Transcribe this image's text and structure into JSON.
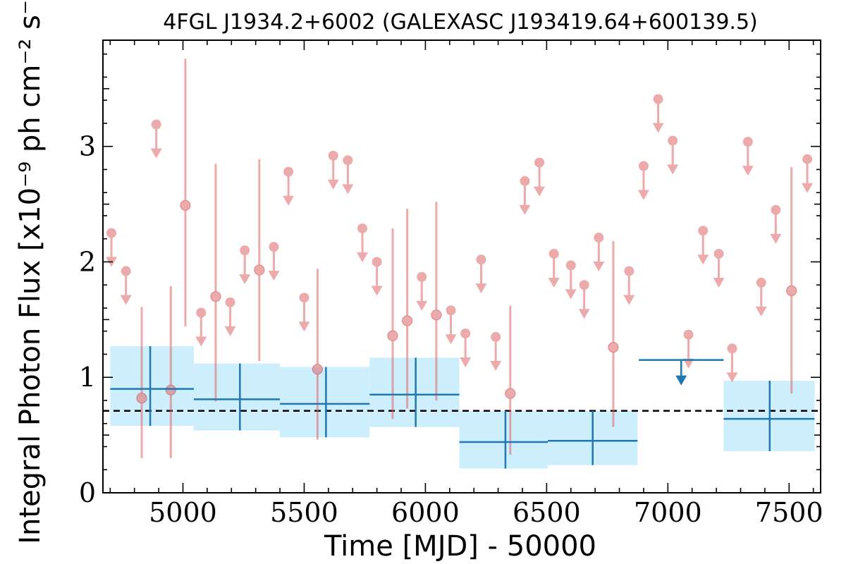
{
  "chart_data": {
    "type": "scatter",
    "title": "4FGL J1934.2+6002 (GALEXASC J193419.64+600139.5)",
    "xlabel": "Time [MJD] - 50000",
    "ylabel": "Integral Photon Flux [x10⁻⁹ ph cm⁻² s⁻¹]",
    "xlim": [
      4670,
      7630
    ],
    "ylim": [
      0,
      3.92
    ],
    "x_ticks": [
      5000,
      5500,
      6000,
      6500,
      7000,
      7500
    ],
    "y_ticks": [
      0,
      1,
      2,
      3
    ],
    "x_tick_labels": [
      "5000",
      "5500",
      "6000",
      "6500",
      "7000",
      "7500"
    ],
    "y_tick_labels": [
      "0",
      "1",
      "2",
      "3"
    ],
    "grid": false,
    "reference_line": {
      "y": 0.71,
      "style": "dashed",
      "color": "#000000"
    },
    "colors": {
      "fine_bins": "#e06666",
      "coarse_bins": "#1f77b4",
      "coarse_band": "#cdeefc"
    },
    "series": [
      {
        "style": "fine-bin-upper-limits",
        "points": [
          {
            "x": 4705,
            "y": 2.25
          },
          {
            "x": 4765,
            "y": 1.92
          },
          {
            "x": 4890,
            "y": 3.19
          },
          {
            "x": 5075,
            "y": 1.56
          },
          {
            "x": 5195,
            "y": 1.65
          },
          {
            "x": 5255,
            "y": 2.1
          },
          {
            "x": 5375,
            "y": 2.13
          },
          {
            "x": 5435,
            "y": 2.78
          },
          {
            "x": 5500,
            "y": 1.69
          },
          {
            "x": 5620,
            "y": 2.92
          },
          {
            "x": 5680,
            "y": 2.88
          },
          {
            "x": 5740,
            "y": 2.29
          },
          {
            "x": 5800,
            "y": 2.0
          },
          {
            "x": 5985,
            "y": 1.87
          },
          {
            "x": 6105,
            "y": 1.58
          },
          {
            "x": 6165,
            "y": 1.38
          },
          {
            "x": 6230,
            "y": 2.02
          },
          {
            "x": 6290,
            "y": 1.35
          },
          {
            "x": 6410,
            "y": 2.7
          },
          {
            "x": 6470,
            "y": 2.86
          },
          {
            "x": 6530,
            "y": 2.07
          },
          {
            "x": 6600,
            "y": 1.97
          },
          {
            "x": 6655,
            "y": 1.8
          },
          {
            "x": 6715,
            "y": 2.21
          },
          {
            "x": 6840,
            "y": 1.92
          },
          {
            "x": 6900,
            "y": 2.83
          },
          {
            "x": 6960,
            "y": 3.41
          },
          {
            "x": 7020,
            "y": 3.05
          },
          {
            "x": 7085,
            "y": 1.37
          },
          {
            "x": 7145,
            "y": 2.27
          },
          {
            "x": 7210,
            "y": 2.07
          },
          {
            "x": 7265,
            "y": 1.25
          },
          {
            "x": 7330,
            "y": 3.04
          },
          {
            "x": 7385,
            "y": 1.82
          },
          {
            "x": 7445,
            "y": 2.45
          },
          {
            "x": 7575,
            "y": 2.89
          }
        ]
      },
      {
        "style": "fine-bin-detections",
        "points": [
          {
            "x": 4830,
            "y": 0.82,
            "ylo": 0.3,
            "yhi": 1.61
          },
          {
            "x": 4950,
            "y": 0.89,
            "ylo": 0.3,
            "yhi": 1.79
          },
          {
            "x": 5010,
            "y": 2.49,
            "ylo": 1.44,
            "yhi": 3.76
          },
          {
            "x": 5135,
            "y": 1.7,
            "ylo": 0.79,
            "yhi": 2.85
          },
          {
            "x": 5315,
            "y": 1.93,
            "ylo": 1.14,
            "yhi": 2.89
          },
          {
            "x": 5555,
            "y": 1.07,
            "ylo": 0.46,
            "yhi": 1.94
          },
          {
            "x": 5865,
            "y": 1.36,
            "ylo": 0.64,
            "yhi": 2.29
          },
          {
            "x": 5925,
            "y": 1.49,
            "ylo": 0.73,
            "yhi": 2.46
          },
          {
            "x": 6045,
            "y": 1.54,
            "ylo": 0.8,
            "yhi": 2.52
          },
          {
            "x": 6350,
            "y": 0.86,
            "ylo": 0.33,
            "yhi": 1.62
          },
          {
            "x": 6775,
            "y": 1.26,
            "ylo": 0.57,
            "yhi": 2.18
          },
          {
            "x": 7510,
            "y": 1.75,
            "ylo": 0.86,
            "yhi": 2.82
          }
        ]
      },
      {
        "style": "coarse-bin-detections",
        "points": [
          {
            "x": 4865,
            "xlo": 4700,
            "xhi": 5045,
            "y": 0.9,
            "ylo": 0.58,
            "yhi": 1.27
          },
          {
            "x": 5235,
            "xlo": 5045,
            "xhi": 5400,
            "y": 0.81,
            "ylo": 0.54,
            "yhi": 1.12
          },
          {
            "x": 5590,
            "xlo": 5400,
            "xhi": 5770,
            "y": 0.77,
            "ylo": 0.48,
            "yhi": 1.09
          },
          {
            "x": 5960,
            "xlo": 5770,
            "xhi": 6140,
            "y": 0.85,
            "ylo": 0.57,
            "yhi": 1.17
          },
          {
            "x": 6330,
            "xlo": 6140,
            "xhi": 6505,
            "y": 0.44,
            "ylo": 0.21,
            "yhi": 0.71
          },
          {
            "x": 6690,
            "xlo": 6505,
            "xhi": 6875,
            "y": 0.45,
            "ylo": 0.24,
            "yhi": 0.71
          },
          {
            "x": 7420,
            "xlo": 7230,
            "xhi": 7605,
            "y": 0.64,
            "ylo": 0.36,
            "yhi": 0.97
          }
        ]
      },
      {
        "style": "coarse-bin-upper-limits",
        "points": [
          {
            "x": 7055,
            "xlo": 6880,
            "xhi": 7230,
            "y": 1.15
          }
        ]
      }
    ]
  }
}
